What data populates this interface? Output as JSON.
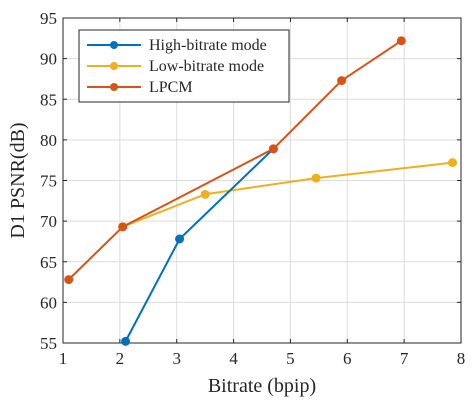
{
  "chart_data": {
    "type": "line",
    "xlabel": "Bitrate (bpip)",
    "ylabel": "D1 PSNR(dB)",
    "xlim": [
      1,
      8
    ],
    "ylim": [
      55,
      95
    ],
    "xticks": [
      "1",
      "2",
      "3",
      "4",
      "5",
      "6",
      "7",
      "8"
    ],
    "yticks": [
      "55",
      "60",
      "65",
      "70",
      "75",
      "80",
      "85",
      "90",
      "95"
    ],
    "grid": true,
    "legend_position": "top-left",
    "series": [
      {
        "name": "High-bitrate mode",
        "color": "#0072BD",
        "x": [
          2.1,
          3.05,
          4.7
        ],
        "y": [
          55.2,
          67.8,
          78.9
        ]
      },
      {
        "name": "Low-bitrate mode",
        "color": "#EDB120",
        "x": [
          2.05,
          3.5,
          5.45,
          7.85
        ],
        "y": [
          69.3,
          73.3,
          75.3,
          77.2
        ]
      },
      {
        "name": "LPCM",
        "color": "#D95319",
        "x": [
          1.1,
          2.05,
          4.7,
          5.9,
          6.95
        ],
        "y": [
          62.8,
          69.3,
          78.9,
          87.3,
          92.2
        ]
      }
    ]
  }
}
